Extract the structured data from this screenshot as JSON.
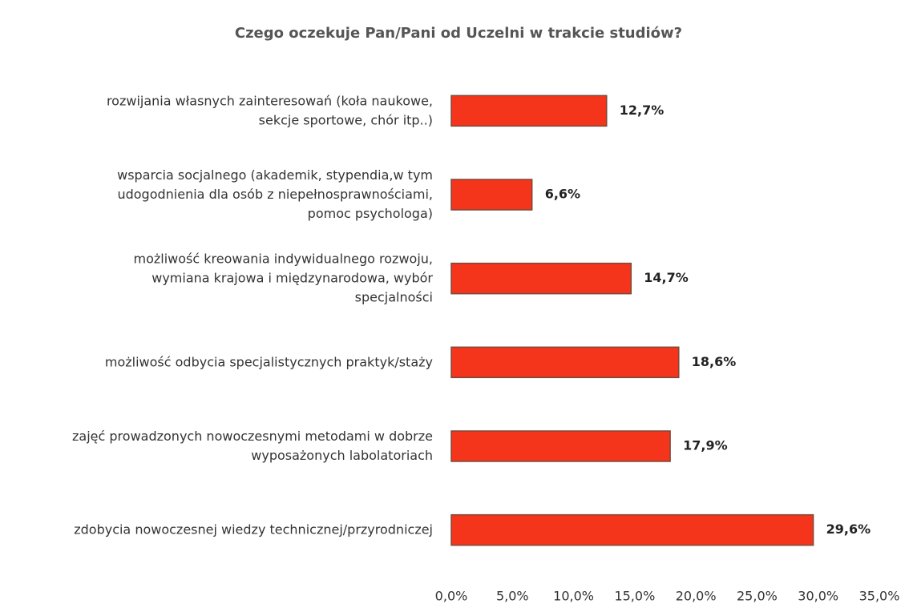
{
  "chart_data": {
    "type": "bar",
    "orientation": "horizontal",
    "title": "Czego oczekuje Pan/Pani od Uczelni w trakcie studiów?",
    "categories": [
      [
        "rozwijania własnych zainteresowań (koła naukowe,",
        "sekcje sportowe, chór itp..)"
      ],
      [
        "wsparcia socjalnego (akademik, stypendia,w tym",
        "udogodnienia dla osób z niepełnosprawnościami,",
        "pomoc psychologa)"
      ],
      [
        "możliwość kreowania indywidualnego rozwoju,",
        "wymiana krajowa i międzynarodowa, wybór",
        "specjalności"
      ],
      [
        "możliwość odbycia specjalistycznych praktyk/staży"
      ],
      [
        "zajęć prowadzonych nowoczesnymi metodami w dobrze",
        "wyposażonych labolatoriach"
      ],
      [
        "zdobycia nowoczesnej wiedzy technicznej/przyrodniczej"
      ]
    ],
    "values": [
      12.7,
      6.6,
      14.7,
      18.6,
      17.9,
      29.6
    ],
    "value_labels": [
      "12,7%",
      "6,6%",
      "14,7%",
      "18,6%",
      "17,9%",
      "29,6%"
    ],
    "color": "#f5341c",
    "xlim": [
      0,
      35
    ],
    "xticks": [
      {
        "value": 0,
        "label": "0,0%"
      },
      {
        "value": 5,
        "label": "5,0%"
      },
      {
        "value": 10,
        "label": "10,0%"
      },
      {
        "value": 15,
        "label": "15,0%"
      },
      {
        "value": 20,
        "label": "20,0%"
      },
      {
        "value": 25,
        "label": "25,0%"
      },
      {
        "value": 30,
        "label": "30,0%"
      },
      {
        "value": 35,
        "label": "35,0%"
      }
    ],
    "grid": false
  }
}
